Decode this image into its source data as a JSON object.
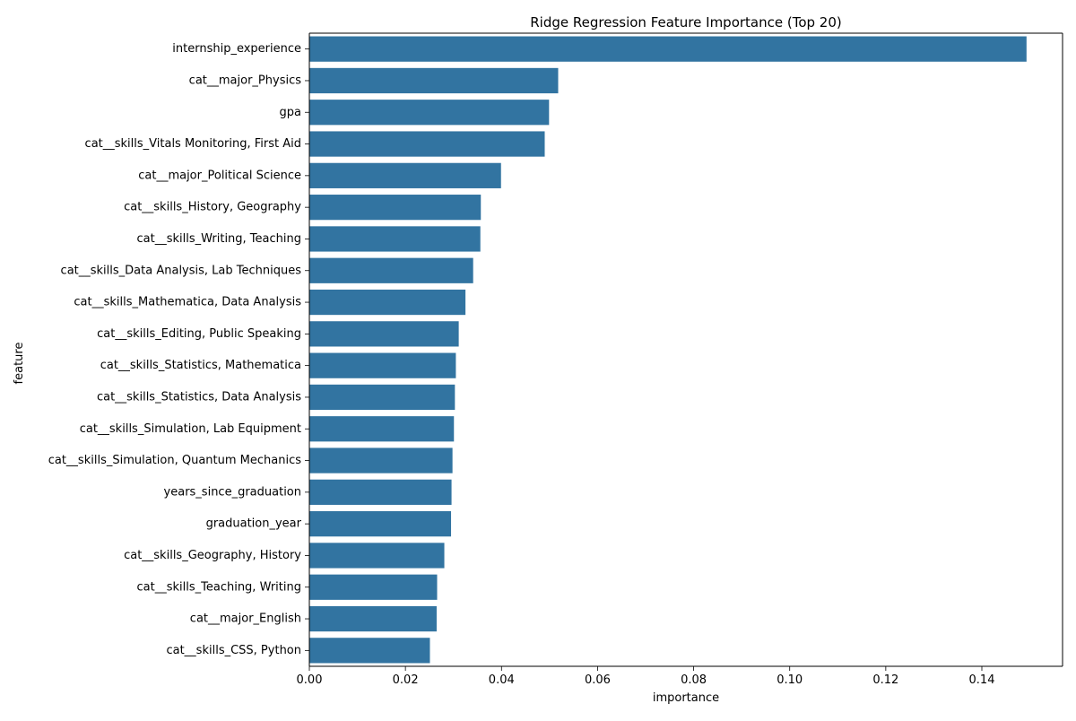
{
  "chart_data": {
    "type": "bar",
    "orientation": "horizontal",
    "title": "Ridge Regression Feature Importance (Top 20)",
    "xlabel": "importance",
    "ylabel": "feature",
    "xlim": [
      0,
      0.1568
    ],
    "xticks": [
      0.0,
      0.02,
      0.04,
      0.06,
      0.08,
      0.1,
      0.12,
      0.14
    ],
    "xtick_labels": [
      "0.00",
      "0.02",
      "0.04",
      "0.06",
      "0.08",
      "0.10",
      "0.12",
      "0.14"
    ],
    "grid": false,
    "bar_color": "#3274a1",
    "categories": [
      "internship_experience",
      "cat__major_Physics",
      "gpa",
      "cat__skills_Vitals Monitoring, First Aid",
      "cat__major_Political Science",
      "cat__skills_History, Geography",
      "cat__skills_Writing, Teaching",
      "cat__skills_Data Analysis, Lab Techniques",
      "cat__skills_Mathematica, Data Analysis",
      "cat__skills_Editing, Public Speaking",
      "cat__skills_Statistics, Mathematica",
      "cat__skills_Statistics, Data Analysis",
      "cat__skills_Simulation, Lab Equipment",
      "cat__skills_Simulation, Quantum Mechanics",
      "years_since_graduation",
      "graduation_year",
      "cat__skills_Geography, History",
      "cat__skills_Teaching, Writing",
      "cat__major_English",
      "cat__skills_CSS, Python"
    ],
    "values": [
      0.1493,
      0.0518,
      0.0499,
      0.049,
      0.0399,
      0.0357,
      0.0356,
      0.0341,
      0.0325,
      0.0311,
      0.0305,
      0.0303,
      0.0301,
      0.0298,
      0.0296,
      0.0295,
      0.0281,
      0.0266,
      0.0265,
      0.0251
    ]
  }
}
